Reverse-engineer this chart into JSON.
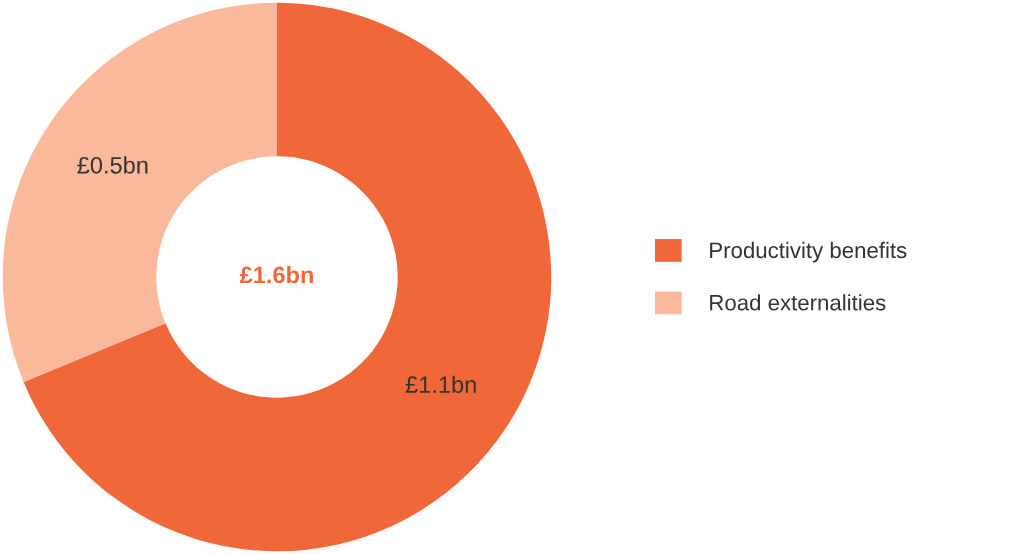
{
  "chart_data": {
    "type": "donut",
    "categories": [
      "Productivity benefits",
      "Road externalities"
    ],
    "values": [
      1.1,
      0.5
    ],
    "colors": [
      "#f0673a",
      "#f9b99a"
    ],
    "value_labels": [
      "£1.1bn",
      "£0.5bn"
    ],
    "annotations": [
      "£1.6bn"
    ],
    "legend": "right"
  }
}
